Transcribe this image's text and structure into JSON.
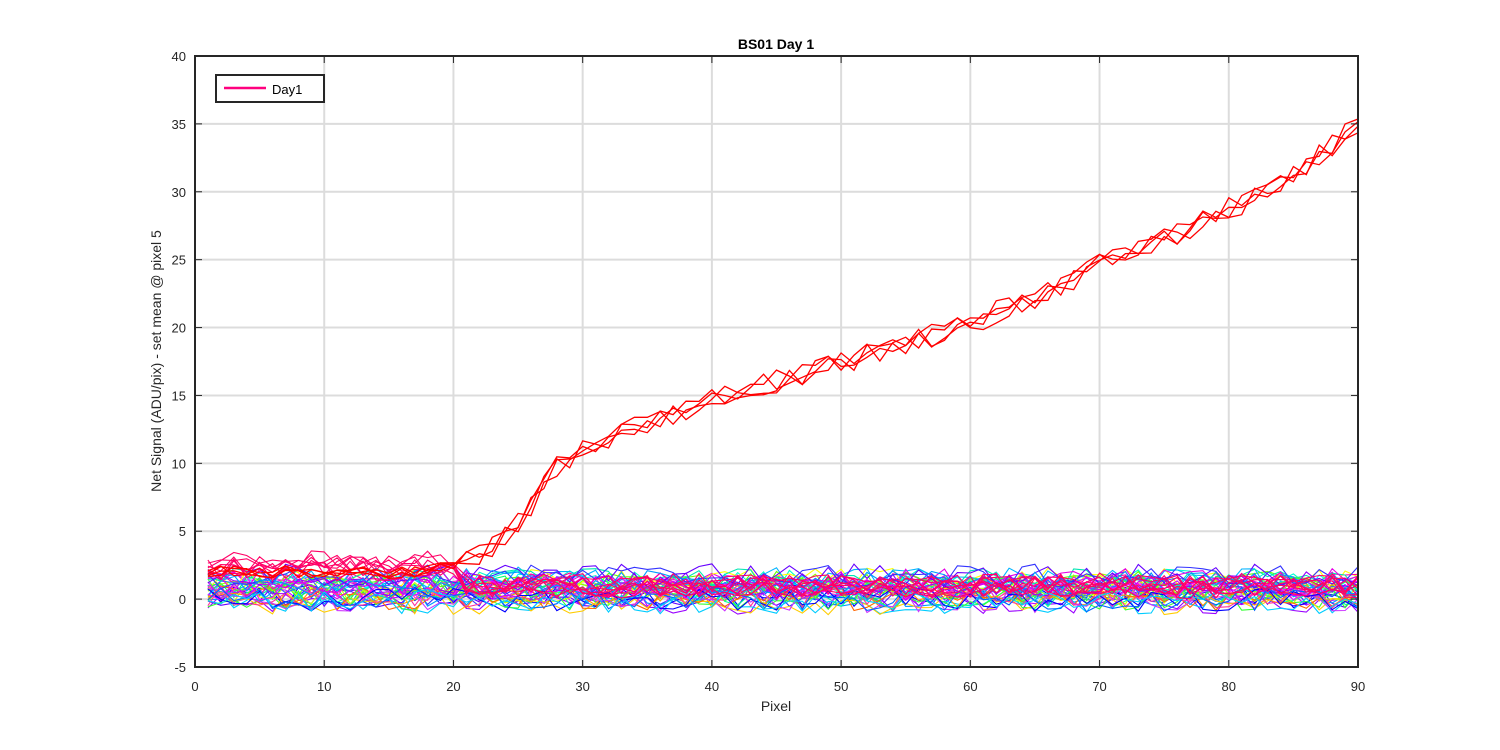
{
  "chart_data": {
    "type": "line",
    "title": "BS01 Day 1",
    "xlabel": "Pixel",
    "ylabel": "Net Signal (ADU/pix) - set mean @ pixel 5",
    "xlim": [
      0,
      90
    ],
    "ylim": [
      -5,
      40
    ],
    "xticks": [
      0,
      10,
      20,
      30,
      40,
      50,
      60,
      70,
      80,
      90
    ],
    "yticks": [
      -5,
      0,
      5,
      10,
      15,
      20,
      25,
      30,
      35,
      40
    ],
    "xtick_labels": [
      "0",
      "10",
      "20",
      "30",
      "40",
      "50",
      "60",
      "70",
      "80",
      "90"
    ],
    "ytick_labels": [
      "-5",
      "0",
      "5",
      "10",
      "15",
      "20",
      "25",
      "30",
      "35",
      "40"
    ],
    "grid": true,
    "legend": {
      "placement": "top-left",
      "entries": [
        {
          "label": "Day1",
          "color": "#ff007f"
        }
      ]
    },
    "x": [
      1,
      2,
      3,
      4,
      5,
      6,
      7,
      8,
      9,
      10,
      11,
      12,
      13,
      14,
      15,
      16,
      17,
      18,
      19,
      20,
      21,
      22,
      23,
      24,
      25,
      26,
      27,
      28,
      29,
      30,
      31,
      32,
      33,
      34,
      35,
      36,
      37,
      38,
      39,
      40,
      41,
      42,
      43,
      44,
      45,
      46,
      47,
      48,
      49,
      50,
      51,
      52,
      53,
      54,
      55,
      56,
      57,
      58,
      59,
      60,
      61,
      62,
      63,
      64,
      65,
      66,
      67,
      68,
      69,
      70,
      71,
      72,
      73,
      74,
      75,
      76,
      77,
      78,
      79,
      80,
      81,
      82,
      83,
      84,
      85,
      86,
      87,
      88,
      89,
      90
    ],
    "rising_series": {
      "color": "#ff0000",
      "count": 4,
      "values": [
        2.0,
        2.1,
        2.0,
        2.2,
        2.0,
        1.9,
        2.1,
        2.0,
        1.9,
        2.0,
        1.9,
        2.0,
        2.0,
        1.9,
        1.9,
        2.0,
        2.0,
        2.1,
        2.3,
        2.6,
        3.0,
        3.4,
        3.9,
        4.8,
        5.8,
        6.9,
        8.2,
        9.6,
        10.5,
        11.1,
        11.6,
        11.9,
        12.2,
        12.6,
        13.0,
        13.4,
        13.7,
        14.0,
        14.3,
        14.6,
        14.9,
        15.2,
        15.5,
        15.8,
        16.0,
        16.3,
        16.6,
        16.9,
        17.1,
        17.4,
        17.7,
        18.0,
        18.2,
        18.5,
        18.8,
        19.1,
        19.4,
        19.7,
        20.0,
        20.3,
        20.7,
        21.1,
        21.5,
        21.9,
        22.3,
        22.7,
        23.2,
        23.6,
        24.1,
        24.6,
        25.0,
        25.4,
        25.8,
        26.2,
        26.6,
        27.0,
        27.4,
        27.8,
        28.2,
        28.7,
        29.1,
        29.6,
        30.2,
        30.8,
        31.4,
        32.0,
        32.7,
        33.4,
        34.2,
        35.0
      ]
    },
    "flat_series": {
      "count": 40,
      "baseline_range": [
        -0.3,
        1.8
      ],
      "noise_amplitude": 0.9,
      "colors": [
        "#ff00ff",
        "#e600e6",
        "#cc00ff",
        "#9900ff",
        "#6600ff",
        "#3333ff",
        "#0000ff",
        "#0066ff",
        "#0099ff",
        "#00ccff",
        "#00ffff",
        "#00ffcc",
        "#00ff99",
        "#00ff66",
        "#33ff33",
        "#66ff00",
        "#99ff00",
        "#ccff00",
        "#ffff00",
        "#ffcc00",
        "#ff9900",
        "#ff6600",
        "#ff3399",
        "#ff0099",
        "#ff33cc",
        "#cc33ff",
        "#3366ff",
        "#00b3ff",
        "#00e6b3",
        "#40ff40"
      ]
    },
    "hot_series": {
      "color": "#ff0066",
      "count": 8,
      "start_level": 2.5,
      "end_level": 1.0
    }
  }
}
